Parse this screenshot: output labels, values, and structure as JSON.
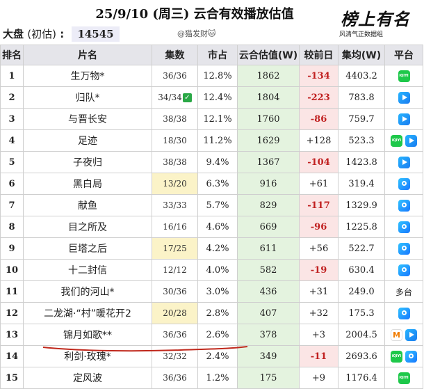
{
  "header": {
    "title": "25/9/10 (周三) 云合有效播放估值",
    "market_label": "大盘",
    "market_paren": "(初估)",
    "market_colon": ":",
    "market_value": "14545",
    "author": "@猫发财🐱",
    "logo_main": "榜上有名",
    "logo_sub": "风清气正数据组"
  },
  "columns": [
    "排名",
    "片名",
    "集数",
    "市占",
    "云合估值(W)",
    "较前日",
    "集均(W)",
    "平台"
  ],
  "rows": [
    {
      "rank": "1",
      "name": "生万物*",
      "eps": "36/36",
      "share": "12.8%",
      "est": "1862",
      "chg": "-134",
      "avg": "4403.2",
      "platform": [
        "iqiyi"
      ],
      "check": false,
      "eps_hl": false
    },
    {
      "rank": "2",
      "name": "归队*",
      "eps": "34/34",
      "share": "12.4%",
      "est": "1804",
      "chg": "-223",
      "avg": "783.8",
      "platform": [
        "tencent"
      ],
      "check": true,
      "eps_hl": false
    },
    {
      "rank": "3",
      "name": "与晋长安",
      "eps": "38/38",
      "share": "12.1%",
      "est": "1760",
      "chg": "-86",
      "avg": "759.7",
      "platform": [
        "tencent"
      ],
      "check": false,
      "eps_hl": false
    },
    {
      "rank": "4",
      "name": "足迹",
      "eps": "18/30",
      "share": "11.2%",
      "est": "1629",
      "chg": "+128",
      "avg": "523.3",
      "platform": [
        "iqiyi",
        "tencent"
      ],
      "check": false,
      "eps_hl": false
    },
    {
      "rank": "5",
      "name": "子夜归",
      "eps": "38/38",
      "share": "9.4%",
      "est": "1367",
      "chg": "-104",
      "avg": "1423.8",
      "platform": [
        "tencent"
      ],
      "check": false,
      "eps_hl": false
    },
    {
      "rank": "6",
      "name": "黑白局",
      "eps": "13/20",
      "share": "6.3%",
      "est": "916",
      "chg": "+61",
      "avg": "319.4",
      "platform": [
        "youku"
      ],
      "check": false,
      "eps_hl": true
    },
    {
      "rank": "7",
      "name": "献鱼",
      "eps": "33/33",
      "share": "5.7%",
      "est": "829",
      "chg": "-117",
      "avg": "1329.9",
      "platform": [
        "youku"
      ],
      "check": false,
      "eps_hl": false
    },
    {
      "rank": "8",
      "name": "目之所及",
      "eps": "16/16",
      "share": "4.6%",
      "est": "669",
      "chg": "-96",
      "avg": "1225.8",
      "platform": [
        "youku"
      ],
      "check": false,
      "eps_hl": false
    },
    {
      "rank": "9",
      "name": "巨塔之后",
      "eps": "17/25",
      "share": "4.2%",
      "est": "611",
      "chg": "+56",
      "avg": "522.7",
      "platform": [
        "youku"
      ],
      "check": false,
      "eps_hl": true
    },
    {
      "rank": "10",
      "name": "十二封信",
      "eps": "12/12",
      "share": "4.0%",
      "est": "582",
      "chg": "-19",
      "avg": "630.4",
      "platform": [
        "youku"
      ],
      "check": false,
      "eps_hl": false
    },
    {
      "rank": "11",
      "name": "我们的河山*",
      "eps": "30/36",
      "share": "3.0%",
      "est": "436",
      "chg": "+31",
      "avg": "249.0",
      "platform_text": "多台",
      "platform": [],
      "check": false,
      "eps_hl": false
    },
    {
      "rank": "12",
      "name": "二龙湖·“村”暖花开2",
      "eps": "20/28",
      "share": "2.8%",
      "est": "407",
      "chg": "+32",
      "avg": "175.3",
      "platform": [
        "youku"
      ],
      "check": false,
      "eps_hl": true
    },
    {
      "rank": "13",
      "name": "锦月如歌**",
      "eps": "36/36",
      "share": "2.6%",
      "est": "378",
      "chg": "+3",
      "avg": "2004.5",
      "platform": [
        "mango",
        "tencent"
      ],
      "check": false,
      "eps_hl": false
    },
    {
      "rank": "14",
      "name": "利剑·玫瑰*",
      "eps": "32/32",
      "share": "2.4%",
      "est": "349",
      "chg": "-11",
      "avg": "2693.6",
      "platform": [
        "iqiyi",
        "youku"
      ],
      "check": false,
      "eps_hl": false
    },
    {
      "rank": "15",
      "name": "定风波",
      "eps": "36/36",
      "share": "1.2%",
      "est": "175",
      "chg": "+9",
      "avg": "1176.4",
      "platform": [
        "iqiyi"
      ],
      "check": false,
      "eps_hl": false
    }
  ],
  "colors": {
    "header_bg": "#e5e5ea",
    "estimate_bg": "#e4f3df",
    "decline_bg": "#fbe5e5",
    "decline_text": "#c02020",
    "episode_highlight": "#fbf3c8",
    "annotation_line": "#c0281c"
  },
  "icons": {
    "iqiyi": "iqiyi-icon",
    "tencent": "tencent-video-icon",
    "youku": "youku-icon",
    "mango": "mango-tv-icon",
    "check": "check-icon"
  }
}
